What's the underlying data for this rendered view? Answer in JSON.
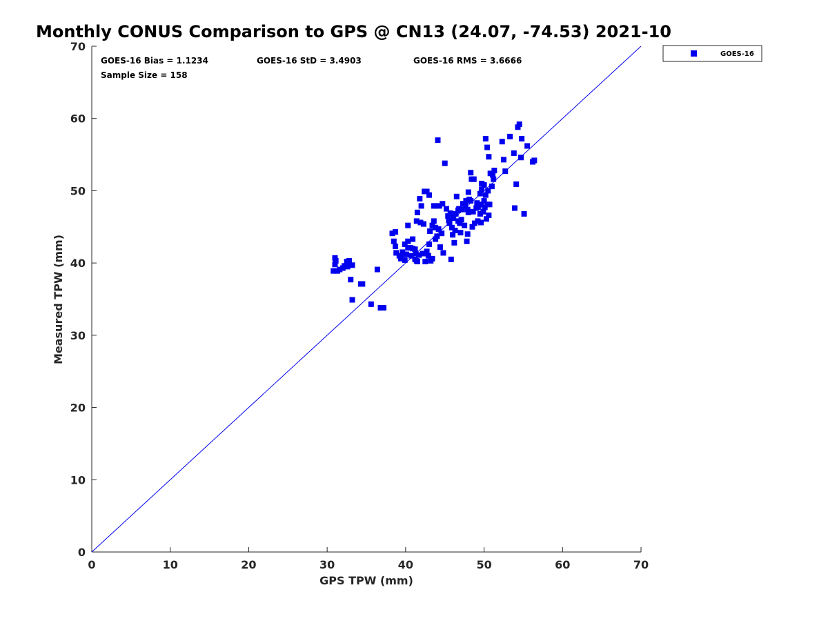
{
  "chart_data": {
    "type": "scatter",
    "title": "Monthly CONUS Comparison to GPS @ CN13 (24.07, -74.53) 2021-10",
    "xlabel": "GPS TPW (mm)",
    "ylabel": "Measured TPW (mm)",
    "xlim": [
      0,
      70
    ],
    "ylim": [
      0,
      70
    ],
    "xticks": [
      "0",
      "10",
      "20",
      "30",
      "40",
      "50",
      "60",
      "70"
    ],
    "yticks": [
      "0",
      "10",
      "20",
      "30",
      "40",
      "50",
      "60",
      "70"
    ],
    "grid": false,
    "legend_position": "outside-top-right",
    "marker_color": "#0000ee",
    "line_color": "#0000ee",
    "stats": {
      "bias": "GOES-16 Bias = 1.1234",
      "std": "GOES-16 StD = 3.4903",
      "rms": "GOES-16 RMS = 3.6666",
      "sample": "Sample Size = 158"
    },
    "reference_line": {
      "x": [
        0,
        70
      ],
      "y": [
        0,
        70
      ]
    },
    "series": [
      {
        "name": "GOES-16",
        "marker": "square",
        "points": [
          [
            30.8,
            38.9
          ],
          [
            31.0,
            40.7
          ],
          [
            31.1,
            40.3
          ],
          [
            31.0,
            39.8
          ],
          [
            31.3,
            38.9
          ],
          [
            31.6,
            39.1
          ],
          [
            32.0,
            39.3
          ],
          [
            32.2,
            39.6
          ],
          [
            32.5,
            40.2
          ],
          [
            32.8,
            40.3
          ],
          [
            32.6,
            39.5
          ],
          [
            33.2,
            39.7
          ],
          [
            33.0,
            37.7
          ],
          [
            33.2,
            34.9
          ],
          [
            34.3,
            37.1
          ],
          [
            34.5,
            37.1
          ],
          [
            35.6,
            34.3
          ],
          [
            36.4,
            39.1
          ],
          [
            36.8,
            33.8
          ],
          [
            37.2,
            33.8
          ],
          [
            38.3,
            44.1
          ],
          [
            38.7,
            44.3
          ],
          [
            38.5,
            43.0
          ],
          [
            38.7,
            42.3
          ],
          [
            38.8,
            41.4
          ],
          [
            39.2,
            41.0
          ],
          [
            39.4,
            40.6
          ],
          [
            39.6,
            41.5
          ],
          [
            39.9,
            42.6
          ],
          [
            39.9,
            40.4
          ],
          [
            40.1,
            41.2
          ],
          [
            40.3,
            42.1
          ],
          [
            40.3,
            43.0
          ],
          [
            40.3,
            45.2
          ],
          [
            40.6,
            42.1
          ],
          [
            40.7,
            41.0
          ],
          [
            40.9,
            43.3
          ],
          [
            41.2,
            41.9
          ],
          [
            41.2,
            40.5
          ],
          [
            41.4,
            40.3
          ],
          [
            41.3,
            41.3
          ],
          [
            41.5,
            40.2
          ],
          [
            41.4,
            45.8
          ],
          [
            41.5,
            47.0
          ],
          [
            41.9,
            45.6
          ],
          [
            42.0,
            47.9
          ],
          [
            41.8,
            48.9
          ],
          [
            42.3,
            45.4
          ],
          [
            42.2,
            41.3
          ],
          [
            42.5,
            40.2
          ],
          [
            42.4,
            49.9
          ],
          [
            42.7,
            49.9
          ],
          [
            43.0,
            49.4
          ],
          [
            42.9,
            41.0
          ],
          [
            43.0,
            42.6
          ],
          [
            43.1,
            44.4
          ],
          [
            43.2,
            40.3
          ],
          [
            43.4,
            40.6
          ],
          [
            43.4,
            45.2
          ],
          [
            43.6,
            45.8
          ],
          [
            43.8,
            44.9
          ],
          [
            43.8,
            43.3
          ],
          [
            43.8,
            47.9
          ],
          [
            44.0,
            43.7
          ],
          [
            44.1,
            57.0
          ],
          [
            44.3,
            47.9
          ],
          [
            44.4,
            42.2
          ],
          [
            44.6,
            44.1
          ],
          [
            44.7,
            48.2
          ],
          [
            44.8,
            41.4
          ],
          [
            45.0,
            53.8
          ],
          [
            45.2,
            47.5
          ],
          [
            45.4,
            46.5
          ],
          [
            45.6,
            45.5
          ],
          [
            45.7,
            46.9
          ],
          [
            45.8,
            40.5
          ],
          [
            45.9,
            44.9
          ],
          [
            46.0,
            43.9
          ],
          [
            46.1,
            46.2
          ],
          [
            46.2,
            42.8
          ],
          [
            46.3,
            44.5
          ],
          [
            46.4,
            46.8
          ],
          [
            46.5,
            49.2
          ],
          [
            46.7,
            45.8
          ],
          [
            46.8,
            47.5
          ],
          [
            47.0,
            44.2
          ],
          [
            47.1,
            46.0
          ],
          [
            47.2,
            47.4
          ],
          [
            47.3,
            48.2
          ],
          [
            47.5,
            45.2
          ],
          [
            47.6,
            47.9
          ],
          [
            47.7,
            48.6
          ],
          [
            47.8,
            43.0
          ],
          [
            47.9,
            44.0
          ],
          [
            48.0,
            47.0
          ],
          [
            48.0,
            49.8
          ],
          [
            48.1,
            48.8
          ],
          [
            48.3,
            48.6
          ],
          [
            48.3,
            52.5
          ],
          [
            48.4,
            51.6
          ],
          [
            48.5,
            45.0
          ],
          [
            48.6,
            47.1
          ],
          [
            48.7,
            51.6
          ],
          [
            48.8,
            45.5
          ],
          [
            49.0,
            47.6
          ],
          [
            49.1,
            48.3
          ],
          [
            49.2,
            45.8
          ],
          [
            49.3,
            47.9
          ],
          [
            49.5,
            46.8
          ],
          [
            49.6,
            45.6
          ],
          [
            49.6,
            48.1
          ],
          [
            49.7,
            50.2
          ],
          [
            49.7,
            51.0
          ],
          [
            49.9,
            47.1
          ],
          [
            50.0,
            48.6
          ],
          [
            50.0,
            50.8
          ],
          [
            50.1,
            47.7
          ],
          [
            50.2,
            57.2
          ],
          [
            50.3,
            46.1
          ],
          [
            50.4,
            56.0
          ],
          [
            50.4,
            48.1
          ],
          [
            50.5,
            50.0
          ],
          [
            50.6,
            54.7
          ],
          [
            50.6,
            46.6
          ],
          [
            50.7,
            48.1
          ],
          [
            50.8,
            52.4
          ],
          [
            51.0,
            50.6
          ],
          [
            51.1,
            52.2
          ],
          [
            51.2,
            51.6
          ],
          [
            51.3,
            52.8
          ],
          [
            52.3,
            56.8
          ],
          [
            52.5,
            54.3
          ],
          [
            52.7,
            52.7
          ],
          [
            53.3,
            57.5
          ],
          [
            53.8,
            55.2
          ],
          [
            53.9,
            47.6
          ],
          [
            54.1,
            50.9
          ],
          [
            54.3,
            58.8
          ],
          [
            54.5,
            59.2
          ],
          [
            54.7,
            54.6
          ],
          [
            54.8,
            57.2
          ],
          [
            55.1,
            46.8
          ],
          [
            55.5,
            56.2
          ],
          [
            56.2,
            54.0
          ],
          [
            56.4,
            54.2
          ],
          [
            49.2,
            47.7
          ],
          [
            46.7,
            47.3
          ],
          [
            43.6,
            47.9
          ],
          [
            40.9,
            42.0
          ],
          [
            39.8,
            41.2
          ],
          [
            45.5,
            45.9
          ],
          [
            47.9,
            47.4
          ],
          [
            42.7,
            41.6
          ],
          [
            44.2,
            44.7
          ],
          [
            49.5,
            49.6
          ],
          [
            50.2,
            49.4
          ],
          [
            41.7,
            41.1
          ],
          [
            46.9,
            45.5
          ]
        ]
      }
    ]
  }
}
